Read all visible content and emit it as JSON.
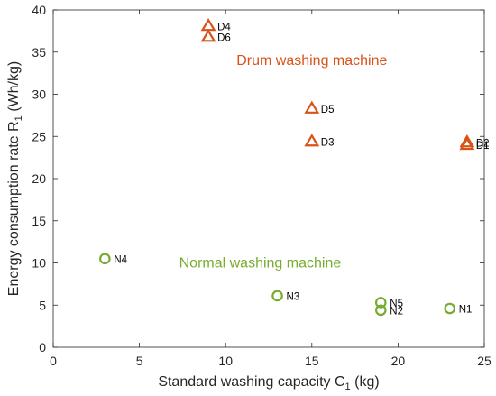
{
  "chart_data": {
    "type": "scatter",
    "xlabel": "Standard washing capacity C",
    "xlabel_sub": "1",
    "xlabel_unit": " (kg)",
    "ylabel": "Energy consumption rate R",
    "ylabel_sub": "1",
    "ylabel_unit": " (Wh/kg)",
    "xlim": [
      0,
      25
    ],
    "ylim": [
      0,
      40
    ],
    "xticks": [
      0,
      5,
      10,
      15,
      20,
      25
    ],
    "yticks": [
      0,
      5,
      10,
      15,
      20,
      25,
      30,
      35,
      40
    ],
    "grid": false,
    "series": [
      {
        "marker": "triangle",
        "color": "#D95319",
        "points": [
          {
            "label": "D1",
            "x": 24,
            "y": 24.0
          },
          {
            "label": "D2",
            "x": 24,
            "y": 24.3
          },
          {
            "label": "D3",
            "x": 15,
            "y": 24.4
          },
          {
            "label": "D4",
            "x": 9,
            "y": 38.1
          },
          {
            "label": "D5",
            "x": 15,
            "y": 28.3
          },
          {
            "label": "D6",
            "x": 9,
            "y": 36.8
          }
        ]
      },
      {
        "marker": "circle",
        "color": "#77AC30",
        "points": [
          {
            "label": "N1",
            "x": 23,
            "y": 4.6
          },
          {
            "label": "N2",
            "x": 19,
            "y": 4.4
          },
          {
            "label": "N3",
            "x": 13,
            "y": 6.1
          },
          {
            "label": "N4",
            "x": 3,
            "y": 10.5
          },
          {
            "label": "N5",
            "x": 19,
            "y": 5.3
          }
        ]
      }
    ],
    "annotations": [
      {
        "text": "Drum washing machine",
        "x": 15,
        "y": 34,
        "color": "#D95319"
      },
      {
        "text": "Normal washing machine",
        "x": 12,
        "y": 10,
        "color": "#77AC30"
      }
    ]
  }
}
